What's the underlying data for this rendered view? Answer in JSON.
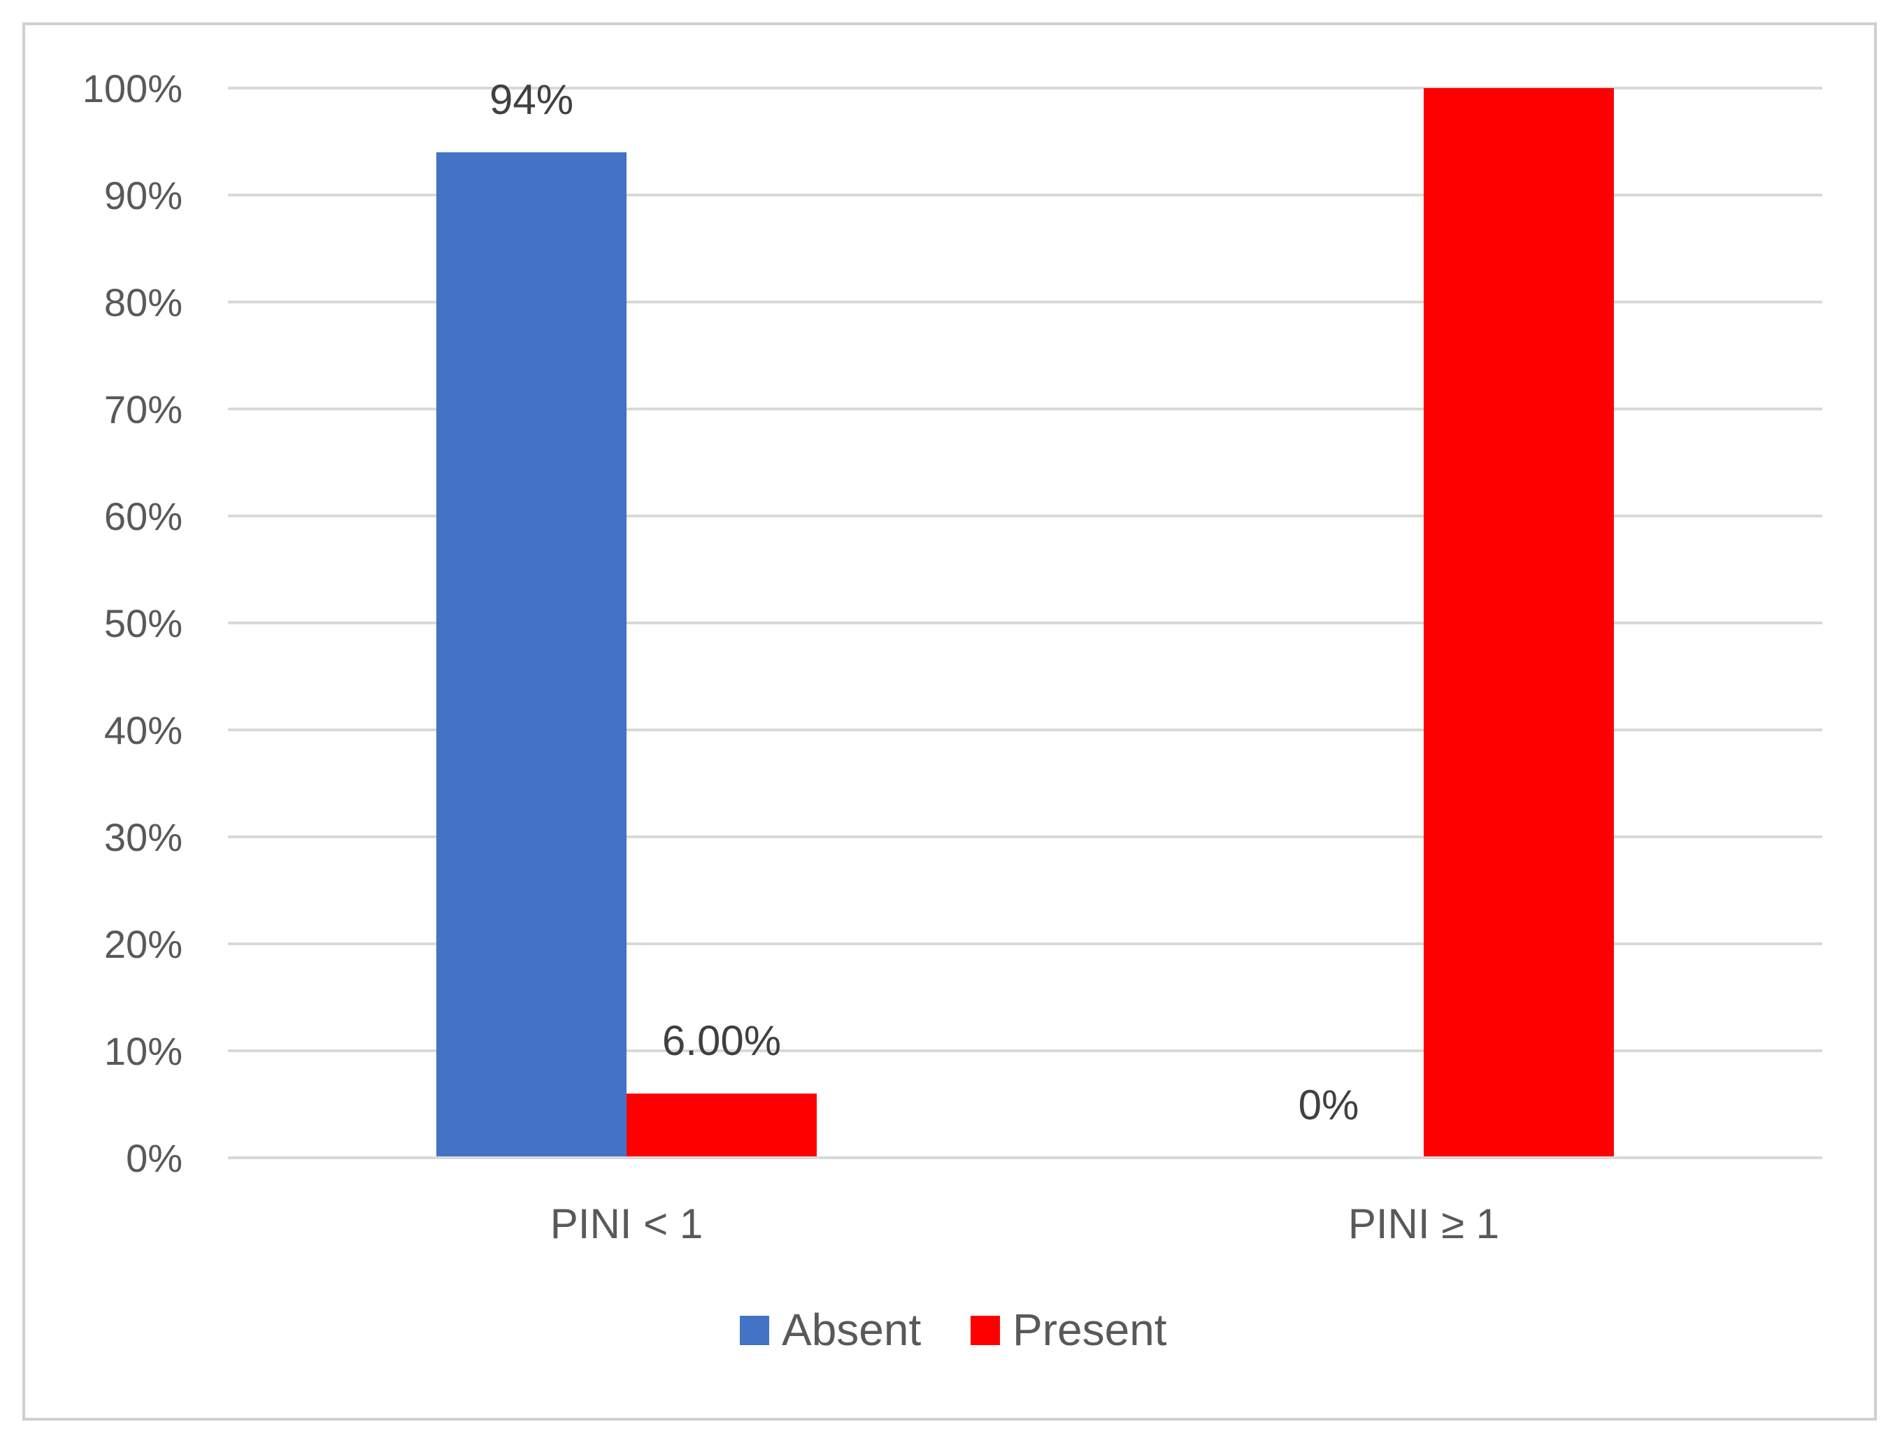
{
  "chart_data": {
    "type": "bar",
    "categories": [
      "PINI < 1",
      "PINI ≥ 1"
    ],
    "series": [
      {
        "name": "Absent",
        "color": "#4472C4",
        "values": [
          94,
          0
        ],
        "labels": [
          "94%",
          "0%"
        ]
      },
      {
        "name": "Present",
        "color": "#FF0000",
        "values": [
          6,
          100
        ],
        "labels": [
          "6.00%",
          ""
        ]
      }
    ],
    "yticks": [
      "0%",
      "10%",
      "20%",
      "30%",
      "40%",
      "50%",
      "60%",
      "70%",
      "80%",
      "90%",
      "100%"
    ],
    "ylim": [
      0,
      100
    ],
    "grid": true,
    "legend_position": "bottom",
    "title": "",
    "xlabel": "",
    "ylabel": ""
  }
}
